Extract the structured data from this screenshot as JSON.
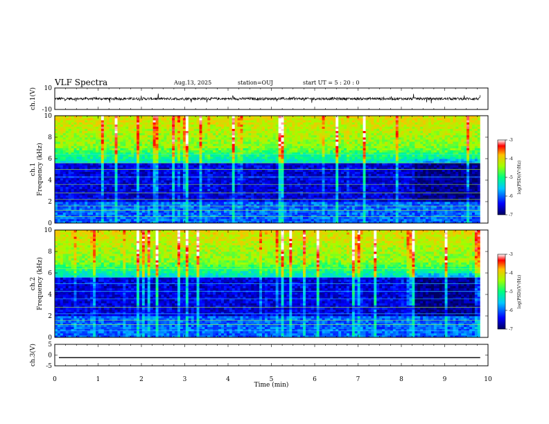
{
  "header": {
    "title": "VLF Spectra",
    "date": "Aug.13, 2025",
    "station": "station=OUJ",
    "start": "start  UT  =   5  : 20 : 0"
  },
  "chart_data": [
    {
      "id": "ch1_waveform",
      "type": "line",
      "ylabel": "ch.1(V)",
      "ylim": [
        -10,
        10
      ],
      "y_ticks": [
        "10",
        "-10"
      ],
      "xlim": [
        0,
        10
      ],
      "description_values": {
        "baseline_V": 0,
        "approx_amplitude_V": 2
      }
    },
    {
      "id": "ch1_spectrogram",
      "type": "heatmap",
      "ylabel": "ch.1\nFrequency  (kHz)",
      "ylim": [
        0,
        10
      ],
      "y_ticks": [
        "0",
        "2",
        "4",
        "6",
        "8",
        "10"
      ],
      "xlim": [
        0,
        10
      ],
      "colorbar": {
        "label": "log(PSD)(V²/Hz)",
        "range": [
          -7,
          -3
        ],
        "ticks": [
          "-3",
          "-4",
          "-5",
          "-6",
          "-7"
        ]
      }
    },
    {
      "id": "ch2_spectrogram",
      "type": "heatmap",
      "ylabel": "ch.2\nFrequency  (kHz)",
      "ylim": [
        0,
        10
      ],
      "y_ticks": [
        "0",
        "2",
        "4",
        "6",
        "8",
        "10"
      ],
      "xlim": [
        0,
        10
      ],
      "colorbar": {
        "label": "log(PSD)(V²/Hz)",
        "range": [
          -7,
          -3
        ],
        "ticks": [
          "-3",
          "-4",
          "-5",
          "-6",
          "-7"
        ]
      }
    },
    {
      "id": "ch3_waveform",
      "type": "line",
      "ylabel": "ch.3(V)",
      "ylim": [
        -5,
        5
      ],
      "y_ticks": [
        "5",
        "0",
        "-5"
      ],
      "xlim": [
        0,
        10
      ],
      "description_values": {
        "constant_V": -1.2
      }
    }
  ],
  "x_axis": {
    "label": "Time  (min)",
    "ticks": [
      "0",
      "1",
      "2",
      "3",
      "4",
      "5",
      "6",
      "7",
      "8",
      "9",
      "10"
    ],
    "range": [
      0,
      10
    ]
  },
  "colors": {
    "colormap": [
      "#000080",
      "#0000ff",
      "#00ffff",
      "#00ff00",
      "#ffff00",
      "#ff0000",
      "#800000"
    ]
  }
}
